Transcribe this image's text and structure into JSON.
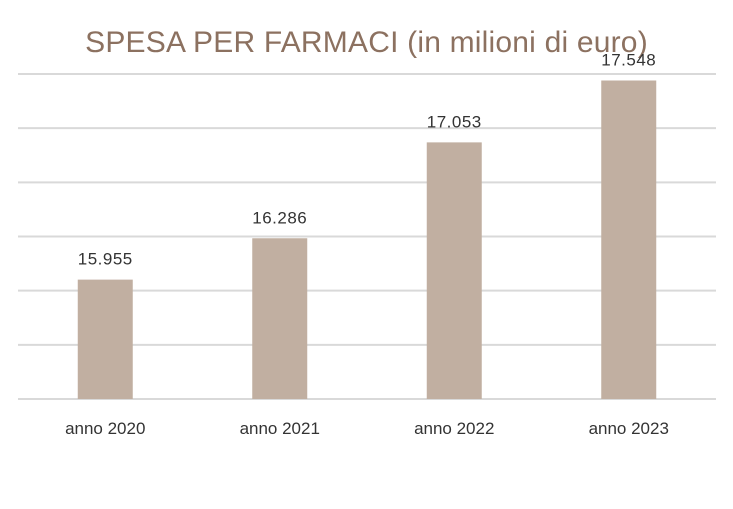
{
  "chart_data": {
    "type": "bar",
    "title": "SPESA PER FARMACI (in milioni di euro)",
    "categories": [
      "anno 2020",
      "anno 2021",
      "anno 2022",
      "anno 2023"
    ],
    "values": [
      15955,
      16286,
      17053,
      17548
    ],
    "data_labels": [
      "15.955",
      "16.286",
      "17.053",
      "17.548"
    ],
    "xlabel": "",
    "ylabel": "",
    "ylim": [
      15000,
      17600
    ],
    "grid": true,
    "legend": "none",
    "bar_color": "#c1afa1",
    "grid_color": "#d9d9d9",
    "title_color": "#8c7160"
  }
}
